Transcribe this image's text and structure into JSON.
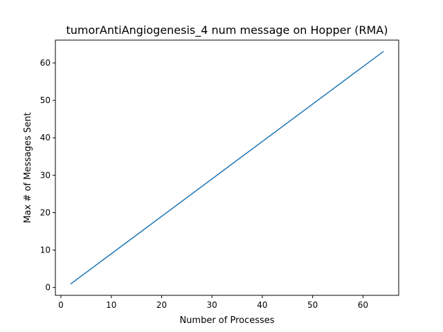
{
  "chart_data": {
    "type": "line",
    "title": "tumorAntiAngiogenesis_4 num message on Hopper (RMA)",
    "xlabel": "Number of Processes",
    "ylabel": "Max # of Messages Sent",
    "xlim": [
      -1.1,
      67.1
    ],
    "ylim": [
      -2.1,
      66.1
    ],
    "xticks": [
      0,
      10,
      20,
      30,
      40,
      50,
      60
    ],
    "yticks": [
      0,
      10,
      20,
      30,
      40,
      50,
      60
    ],
    "grid": false,
    "series": [
      {
        "color": "#1f77b4",
        "x": [
          2,
          4,
          8,
          16,
          32,
          64
        ],
        "y": [
          1,
          3,
          7,
          15,
          31,
          63
        ]
      }
    ]
  }
}
